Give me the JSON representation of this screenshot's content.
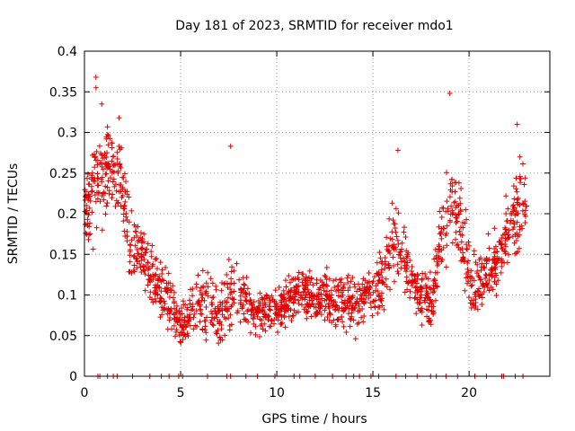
{
  "chart_data": {
    "type": "scatter",
    "title": "Day 181 of 2023, SRMTID for receiver mdo1",
    "xlabel": "GPS time / hours",
    "ylabel": "SRMTID / TECUs",
    "xlim": [
      0,
      24.2
    ],
    "ylim": [
      0,
      0.4
    ],
    "x_ticks": [
      0,
      5,
      10,
      15,
      20
    ],
    "y_ticks": [
      0,
      0.05,
      0.1,
      0.15,
      0.2,
      0.25,
      0.3,
      0.35,
      0.4
    ],
    "x_tick_labels": [
      "0",
      "5",
      "10",
      "15",
      "20"
    ],
    "y_tick_labels": [
      "0",
      "0.05",
      "0.1",
      "0.15",
      "0.2",
      "0.25",
      "0.3",
      "0.35",
      "0.4"
    ],
    "grid": true,
    "marker": "+",
    "color": "#e00000",
    "series_name": "mdo1",
    "point_generator": "piecewise mean envelope with scatter, approximates the displayed cloud",
    "envelope": {
      "hours": [
        0,
        0.5,
        1,
        1.5,
        2,
        2.5,
        3,
        3.5,
        4,
        4.5,
        5,
        5.5,
        6,
        6.5,
        7,
        7.5,
        8,
        8.5,
        9,
        9.5,
        10,
        10.5,
        11,
        11.5,
        12,
        12.5,
        13,
        13.5,
        14,
        14.5,
        15,
        15.5,
        16,
        16.5,
        17,
        17.5,
        18,
        18.5,
        19,
        19.5,
        20,
        20.5,
        21,
        21.5,
        22,
        22.5,
        23
      ],
      "mean": [
        0.2,
        0.24,
        0.25,
        0.26,
        0.22,
        0.16,
        0.15,
        0.12,
        0.11,
        0.09,
        0.06,
        0.08,
        0.09,
        0.08,
        0.07,
        0.1,
        0.1,
        0.09,
        0.08,
        0.08,
        0.08,
        0.09,
        0.1,
        0.1,
        0.09,
        0.1,
        0.09,
        0.09,
        0.09,
        0.1,
        0.1,
        0.12,
        0.17,
        0.15,
        0.12,
        0.1,
        0.1,
        0.16,
        0.22,
        0.2,
        0.12,
        0.11,
        0.13,
        0.14,
        0.18,
        0.2,
        0.21
      ],
      "spread": [
        0.06,
        0.08,
        0.07,
        0.06,
        0.06,
        0.06,
        0.05,
        0.04,
        0.04,
        0.04,
        0.03,
        0.04,
        0.05,
        0.05,
        0.05,
        0.06,
        0.05,
        0.04,
        0.04,
        0.03,
        0.03,
        0.03,
        0.04,
        0.04,
        0.03,
        0.04,
        0.04,
        0.04,
        0.04,
        0.04,
        0.04,
        0.05,
        0.06,
        0.05,
        0.05,
        0.04,
        0.05,
        0.07,
        0.08,
        0.06,
        0.05,
        0.04,
        0.05,
        0.05,
        0.06,
        0.07,
        0.06
      ]
    },
    "zero_points_hours": [
      0.7,
      0.8,
      1.2,
      1.5,
      1.7,
      2.5,
      3.4,
      4.0,
      4.4,
      4.9,
      5.1,
      6.4,
      7.4,
      7.6,
      8.4,
      9.0,
      9.9,
      10.9,
      11.2,
      12.0,
      12.9,
      13.6,
      14.0,
      14.3,
      14.9,
      15.3,
      16.2,
      16.7,
      17.3,
      18.0,
      18.3,
      18.8,
      19.4,
      20.3,
      20.9,
      21.7,
      21.8,
      22.4,
      22.8
    ],
    "peak_points": [
      [
        0.6,
        0.368
      ],
      [
        0.6,
        0.355
      ],
      [
        0.9,
        0.335
      ],
      [
        1.8,
        0.318
      ],
      [
        7.6,
        0.283
      ],
      [
        16.3,
        0.278
      ],
      [
        19.0,
        0.348
      ],
      [
        22.5,
        0.31
      ]
    ]
  }
}
